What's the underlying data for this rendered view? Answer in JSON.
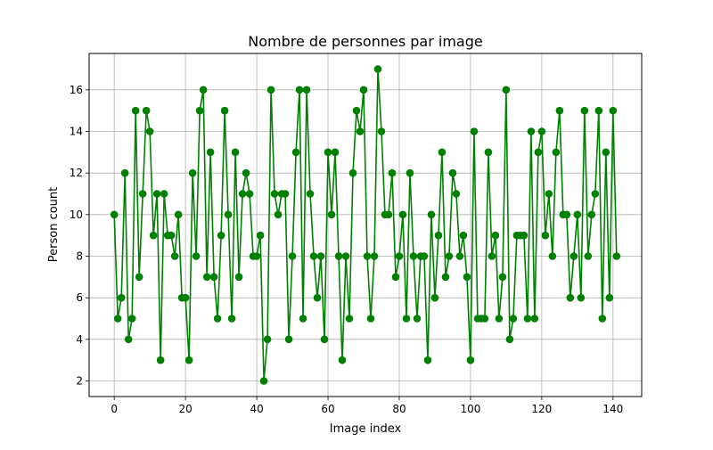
{
  "chart_data": {
    "type": "line",
    "title": "Nombre de personnes par image",
    "xlabel": "Image index",
    "ylabel": "Person count",
    "xlim": [
      -7.05,
      148.05
    ],
    "ylim": [
      1.25,
      17.75
    ],
    "xticks": [
      0,
      20,
      40,
      60,
      80,
      100,
      120,
      140
    ],
    "yticks": [
      2,
      4,
      6,
      8,
      10,
      12,
      14,
      16
    ],
    "grid": true,
    "marker": "circle",
    "series": [
      {
        "color": "#008000",
        "x": [
          0,
          1,
          2,
          3,
          4,
          5,
          6,
          7,
          8,
          9,
          10,
          11,
          12,
          13,
          14,
          15,
          16,
          17,
          18,
          19,
          20,
          21,
          22,
          23,
          24,
          25,
          26,
          27,
          28,
          29,
          30,
          31,
          32,
          33,
          34,
          35,
          36,
          37,
          38,
          39,
          40,
          41,
          42,
          43,
          44,
          45,
          46,
          47,
          48,
          49,
          50,
          51,
          52,
          53,
          54,
          55,
          56,
          57,
          58,
          59,
          60,
          61,
          62,
          63,
          64,
          65,
          66,
          67,
          68,
          69,
          70,
          71,
          72,
          73,
          74,
          75,
          76,
          77,
          78,
          79,
          80,
          81,
          82,
          83,
          84,
          85,
          86,
          87,
          88,
          89,
          90,
          91,
          92,
          93,
          94,
          95,
          96,
          97,
          98,
          99,
          100,
          101,
          102,
          103,
          104,
          105,
          106,
          107,
          108,
          109,
          110,
          111,
          112,
          113,
          114,
          115,
          116,
          117,
          118,
          119,
          120,
          121,
          122,
          123,
          124,
          125,
          126,
          127,
          128,
          129,
          130,
          131,
          132,
          133,
          134,
          135,
          136,
          137,
          138,
          139,
          140,
          141
        ],
        "values": [
          10,
          5,
          6,
          12,
          4,
          5,
          15,
          7,
          11,
          15,
          14,
          9,
          11,
          3,
          11,
          9,
          9,
          8,
          10,
          6,
          6,
          3,
          12,
          8,
          15,
          16,
          7,
          13,
          7,
          5,
          9,
          15,
          10,
          5,
          13,
          7,
          11,
          12,
          11,
          8,
          8,
          9,
          2,
          4,
          16,
          11,
          10,
          11,
          11,
          4,
          8,
          13,
          16,
          5,
          16,
          11,
          8,
          6,
          8,
          4,
          13,
          10,
          13,
          8,
          3,
          8,
          5,
          12,
          15,
          14,
          16,
          8,
          5,
          8,
          17,
          14,
          10,
          10,
          12,
          7,
          8,
          10,
          5,
          12,
          8,
          5,
          8,
          8,
          3,
          10,
          6,
          9,
          13,
          7,
          8,
          12,
          11,
          8,
          9,
          7,
          3,
          14,
          5,
          5,
          5,
          13,
          8,
          9,
          5,
          7,
          16,
          4,
          5,
          9,
          9,
          9,
          5,
          14,
          5,
          13,
          14,
          9,
          11,
          8,
          13,
          15,
          10,
          10,
          6,
          8,
          10,
          6,
          15,
          8,
          10,
          11,
          15,
          5,
          13,
          6,
          15,
          8
        ]
      }
    ]
  }
}
